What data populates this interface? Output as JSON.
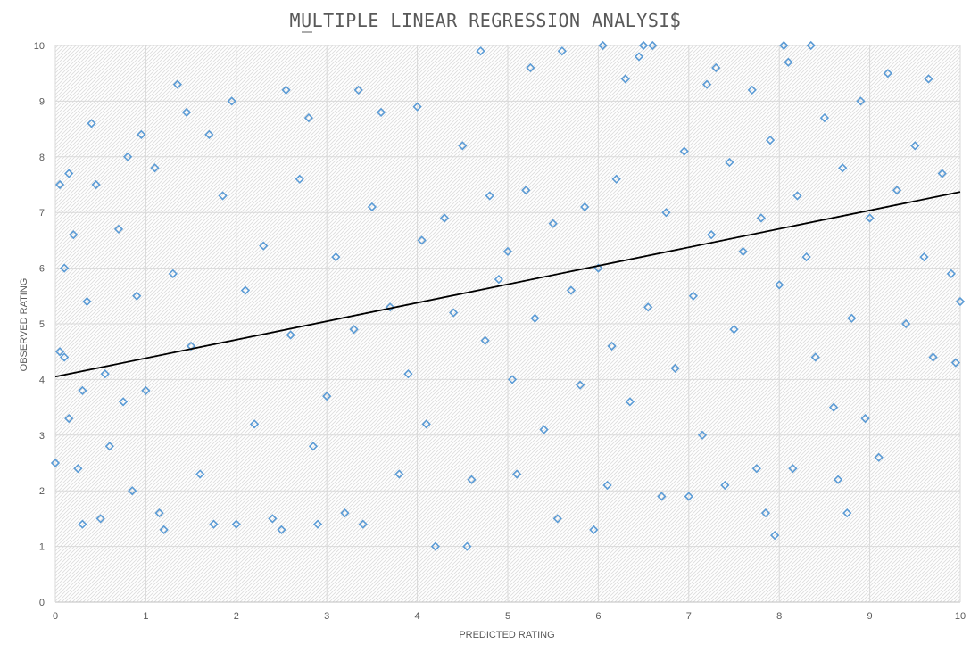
{
  "chart_data": {
    "type": "scatter",
    "title": "MULTIPLE LINEAR REGRESSION ANALYSIS",
    "xlabel": "PREDICTED RATING",
    "ylabel": "OBSERVED RATING",
    "xlim": [
      0,
      10
    ],
    "ylim": [
      0,
      10
    ],
    "x_ticks": [
      "0",
      "1",
      "2",
      "3",
      "4",
      "5",
      "6",
      "7",
      "8",
      "9",
      "10"
    ],
    "y_ticks": [
      "0",
      "1",
      "2",
      "3",
      "4",
      "5",
      "6",
      "7",
      "8",
      "9",
      "10"
    ],
    "grid": true,
    "legend": "none",
    "marker": "diamond",
    "point_color": "#5b9bd5",
    "trendline": {
      "type": "linear",
      "color": "#000000",
      "points": [
        [
          0,
          4.05
        ],
        [
          10,
          7.37
        ]
      ]
    },
    "series": [
      {
        "points": [
          [
            0.0,
            2.5
          ],
          [
            0.05,
            4.5
          ],
          [
            0.05,
            7.5
          ],
          [
            0.1,
            6.0
          ],
          [
            0.1,
            4.4
          ],
          [
            0.15,
            3.3
          ],
          [
            0.15,
            7.7
          ],
          [
            0.2,
            6.6
          ],
          [
            0.25,
            2.4
          ],
          [
            0.3,
            1.4
          ],
          [
            0.3,
            3.8
          ],
          [
            0.35,
            5.4
          ],
          [
            0.4,
            8.6
          ],
          [
            0.45,
            7.5
          ],
          [
            0.5,
            1.5
          ],
          [
            0.55,
            4.1
          ],
          [
            0.6,
            2.8
          ],
          [
            0.7,
            6.7
          ],
          [
            0.75,
            3.6
          ],
          [
            0.8,
            8.0
          ],
          [
            0.85,
            2.0
          ],
          [
            0.9,
            5.5
          ],
          [
            0.95,
            8.4
          ],
          [
            1.0,
            3.8
          ],
          [
            1.1,
            7.8
          ],
          [
            1.15,
            1.6
          ],
          [
            1.2,
            1.3
          ],
          [
            1.3,
            5.9
          ],
          [
            1.35,
            9.3
          ],
          [
            1.45,
            8.8
          ],
          [
            1.5,
            4.6
          ],
          [
            1.6,
            2.3
          ],
          [
            1.7,
            8.4
          ],
          [
            1.75,
            1.4
          ],
          [
            1.85,
            7.3
          ],
          [
            1.95,
            9.0
          ],
          [
            2.0,
            1.4
          ],
          [
            2.1,
            5.6
          ],
          [
            2.2,
            3.2
          ],
          [
            2.3,
            6.4
          ],
          [
            2.4,
            1.5
          ],
          [
            2.5,
            1.3
          ],
          [
            2.55,
            9.2
          ],
          [
            2.6,
            4.8
          ],
          [
            2.7,
            7.6
          ],
          [
            2.8,
            8.7
          ],
          [
            2.85,
            2.8
          ],
          [
            2.9,
            1.4
          ],
          [
            3.0,
            3.7
          ],
          [
            3.1,
            6.2
          ],
          [
            3.2,
            1.6
          ],
          [
            3.3,
            4.9
          ],
          [
            3.35,
            9.2
          ],
          [
            3.4,
            1.4
          ],
          [
            3.5,
            7.1
          ],
          [
            3.6,
            8.8
          ],
          [
            3.7,
            5.3
          ],
          [
            3.8,
            2.3
          ],
          [
            3.9,
            4.1
          ],
          [
            4.0,
            8.9
          ],
          [
            4.05,
            6.5
          ],
          [
            4.1,
            3.2
          ],
          [
            4.2,
            1.0
          ],
          [
            4.3,
            6.9
          ],
          [
            4.4,
            5.2
          ],
          [
            4.5,
            8.2
          ],
          [
            4.55,
            1.0
          ],
          [
            4.6,
            2.2
          ],
          [
            4.7,
            9.9
          ],
          [
            4.75,
            4.7
          ],
          [
            4.8,
            7.3
          ],
          [
            4.9,
            5.8
          ],
          [
            5.0,
            6.3
          ],
          [
            5.05,
            4.0
          ],
          [
            5.1,
            2.3
          ],
          [
            5.2,
            7.4
          ],
          [
            5.25,
            9.6
          ],
          [
            5.3,
            5.1
          ],
          [
            5.4,
            3.1
          ],
          [
            5.5,
            6.8
          ],
          [
            5.55,
            1.5
          ],
          [
            5.6,
            9.9
          ],
          [
            5.7,
            5.6
          ],
          [
            5.8,
            3.9
          ],
          [
            5.85,
            7.1
          ],
          [
            5.95,
            1.3
          ],
          [
            6.0,
            6.0
          ],
          [
            6.05,
            10.0
          ],
          [
            6.1,
            2.1
          ],
          [
            6.15,
            4.6
          ],
          [
            6.2,
            7.6
          ],
          [
            6.3,
            9.4
          ],
          [
            6.35,
            3.6
          ],
          [
            6.45,
            9.8
          ],
          [
            6.5,
            10.0
          ],
          [
            6.55,
            5.3
          ],
          [
            6.6,
            10.0
          ],
          [
            6.7,
            1.9
          ],
          [
            6.75,
            7.0
          ],
          [
            6.85,
            4.2
          ],
          [
            6.95,
            8.1
          ],
          [
            7.0,
            1.9
          ],
          [
            7.05,
            5.5
          ],
          [
            7.15,
            3.0
          ],
          [
            7.2,
            9.3
          ],
          [
            7.25,
            6.6
          ],
          [
            7.3,
            9.6
          ],
          [
            7.4,
            2.1
          ],
          [
            7.45,
            7.9
          ],
          [
            7.5,
            4.9
          ],
          [
            7.6,
            6.3
          ],
          [
            7.7,
            9.2
          ],
          [
            7.75,
            2.4
          ],
          [
            7.8,
            6.9
          ],
          [
            7.85,
            1.6
          ],
          [
            7.9,
            8.3
          ],
          [
            7.95,
            1.2
          ],
          [
            8.0,
            5.7
          ],
          [
            8.05,
            10.0
          ],
          [
            8.1,
            9.7
          ],
          [
            8.15,
            2.4
          ],
          [
            8.2,
            7.3
          ],
          [
            8.3,
            6.2
          ],
          [
            8.35,
            10.0
          ],
          [
            8.4,
            4.4
          ],
          [
            8.5,
            8.7
          ],
          [
            8.6,
            3.5
          ],
          [
            8.65,
            2.2
          ],
          [
            8.7,
            7.8
          ],
          [
            8.75,
            1.6
          ],
          [
            8.8,
            5.1
          ],
          [
            8.9,
            9.0
          ],
          [
            8.95,
            3.3
          ],
          [
            9.0,
            6.9
          ],
          [
            9.1,
            2.6
          ],
          [
            9.2,
            9.5
          ],
          [
            9.3,
            7.4
          ],
          [
            9.4,
            5.0
          ],
          [
            9.5,
            8.2
          ],
          [
            9.6,
            6.2
          ],
          [
            9.65,
            9.4
          ],
          [
            9.7,
            4.4
          ],
          [
            9.8,
            7.7
          ],
          [
            9.9,
            5.9
          ],
          [
            9.95,
            4.3
          ],
          [
            10.0,
            5.4
          ]
        ]
      }
    ]
  }
}
